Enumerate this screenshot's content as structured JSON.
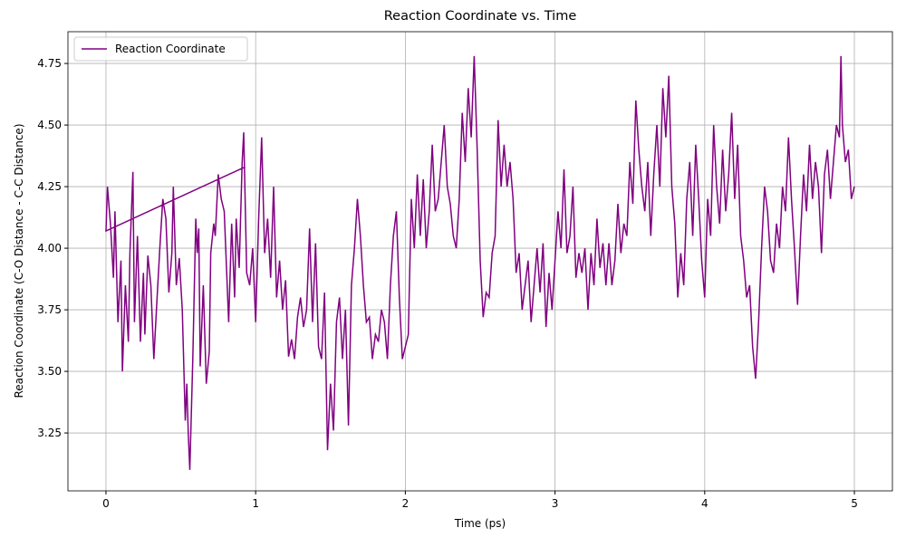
{
  "chart_data": {
    "type": "line",
    "title": "Reaction Coordinate vs. Time",
    "xlabel": "Time (ps)",
    "ylabel": "Reaction Coordinate (C-O Distance - C-C Distance)",
    "xlim": [
      -0.254,
      5.254
    ],
    "ylim": [
      3.015,
      4.879
    ],
    "xticks": [
      0,
      1,
      2,
      3,
      4,
      5
    ],
    "yticks": [
      3.25,
      {
        "value": 3.5,
        "label": "3.50"
      },
      3.75,
      {
        "value": 4,
        "label": "4.00"
      },
      4.25,
      {
        "value": 4.5,
        "label": "4.50"
      },
      4.75
    ],
    "grid": true,
    "legend": "upper left",
    "x": [
      0.93,
      0,
      0.01,
      0.03,
      0.05,
      0.06,
      0.08,
      0.1,
      0.11,
      0.13,
      0.15,
      0.16,
      0.18,
      0.19,
      0.21,
      0.23,
      0.25,
      0.26,
      0.28,
      0.3,
      0.32,
      0.34,
      0.36,
      0.38,
      0.4,
      0.42,
      0.44,
      0.45,
      0.47,
      0.49,
      0.51,
      0.53,
      0.54,
      0.55,
      0.56,
      0.58,
      0.6,
      0.61,
      0.62,
      0.63,
      0.65,
      0.67,
      0.69,
      0.7,
      0.72,
      0.73,
      0.75,
      0.77,
      0.79,
      0.82,
      0.84,
      0.86,
      0.87,
      0.89,
      0.91,
      0.92,
      0.94,
      0.96,
      0.98,
      1.0,
      1.02,
      1.04,
      1.06,
      1.08,
      1.1,
      1.12,
      1.14,
      1.16,
      1.18,
      1.2,
      1.22,
      1.24,
      1.26,
      1.28,
      1.3,
      1.32,
      1.34,
      1.36,
      1.38,
      1.4,
      1.42,
      1.44,
      1.46,
      1.48,
      1.5,
      1.52,
      1.54,
      1.56,
      1.58,
      1.6,
      1.62,
      1.64,
      1.66,
      1.68,
      1.7,
      1.72,
      1.74,
      1.76,
      1.78,
      1.8,
      1.82,
      1.84,
      1.86,
      1.88,
      1.9,
      1.92,
      1.94,
      1.96,
      1.98,
      2.0,
      2.02,
      2.04,
      2.06,
      2.08,
      2.1,
      2.12,
      2.14,
      2.16,
      2.18,
      2.2,
      2.22,
      2.24,
      2.26,
      2.28,
      2.3,
      2.32,
      2.34,
      2.36,
      2.38,
      2.4,
      2.42,
      2.44,
      2.46,
      2.48,
      2.5,
      2.52,
      2.54,
      2.56,
      2.58,
      2.6,
      2.62,
      2.64,
      2.66,
      2.68,
      2.7,
      2.72,
      2.74,
      2.76,
      2.78,
      2.8,
      2.82,
      2.84,
      2.86,
      2.88,
      2.9,
      2.92,
      2.94,
      2.96,
      2.98,
      3.0,
      3.02,
      3.04,
      3.06,
      3.08,
      3.1,
      3.12,
      3.14,
      3.16,
      3.18,
      3.2,
      3.22,
      3.24,
      3.26,
      3.28,
      3.3,
      3.32,
      3.34,
      3.36,
      3.38,
      3.4,
      3.42,
      3.44,
      3.46,
      3.48,
      3.5,
      3.52,
      3.54,
      3.56,
      3.58,
      3.6,
      3.62,
      3.64,
      3.66,
      3.68,
      3.7,
      3.72,
      3.74,
      3.76,
      3.78,
      3.8,
      3.82,
      3.84,
      3.86,
      3.88,
      3.9,
      3.92,
      3.94,
      3.96,
      3.98,
      4.0,
      4.02,
      4.04,
      4.06,
      4.08,
      4.1,
      4.12,
      4.14,
      4.16,
      4.18,
      4.2,
      4.22,
      4.24,
      4.26,
      4.28,
      4.3,
      4.32,
      4.34,
      4.36,
      4.38,
      4.4,
      4.42,
      4.44,
      4.46,
      4.48,
      4.5,
      4.52,
      4.54,
      4.56,
      4.58,
      4.6,
      4.62,
      4.64,
      4.66,
      4.68,
      4.7,
      4.72,
      4.74,
      4.76,
      4.78,
      4.8,
      4.82,
      4.84,
      4.86,
      4.88,
      4.9,
      4.91,
      4.92,
      4.94,
      4.96,
      4.98,
      5.0
    ],
    "series": [
      {
        "name": "Reaction Coordinate",
        "color": "#800080",
        "values": [
          4.33,
          4.07,
          4.25,
          4.1,
          3.88,
          4.15,
          3.7,
          3.95,
          3.5,
          3.85,
          3.62,
          3.98,
          4.31,
          3.7,
          4.05,
          3.62,
          3.9,
          3.65,
          3.97,
          3.85,
          3.55,
          3.78,
          4.0,
          4.2,
          4.12,
          3.82,
          3.98,
          4.25,
          3.85,
          3.96,
          3.75,
          3.3,
          3.45,
          3.25,
          3.1,
          3.55,
          4.12,
          3.98,
          4.08,
          3.52,
          3.85,
          3.45,
          3.58,
          3.98,
          4.1,
          4.05,
          4.3,
          4.2,
          4.15,
          3.7,
          4.1,
          3.8,
          4.12,
          3.92,
          4.35,
          4.47,
          3.9,
          3.85,
          4.0,
          3.7,
          4.12,
          4.45,
          3.98,
          4.12,
          3.88,
          4.25,
          3.8,
          3.95,
          3.75,
          3.87,
          3.56,
          3.63,
          3.55,
          3.72,
          3.8,
          3.68,
          3.75,
          4.08,
          3.7,
          4.02,
          3.6,
          3.55,
          3.82,
          3.18,
          3.45,
          3.26,
          3.7,
          3.8,
          3.55,
          3.75,
          3.28,
          3.85,
          4.0,
          4.2,
          4.05,
          3.85,
          3.7,
          3.72,
          3.55,
          3.65,
          3.62,
          3.75,
          3.7,
          3.55,
          3.85,
          4.05,
          4.15,
          3.8,
          3.55,
          3.6,
          3.65,
          4.2,
          4.0,
          4.3,
          4.05,
          4.28,
          4.0,
          4.15,
          4.42,
          4.15,
          4.2,
          4.35,
          4.5,
          4.25,
          4.18,
          4.05,
          4.0,
          4.2,
          4.55,
          4.35,
          4.65,
          4.45,
          4.78,
          4.4,
          3.95,
          3.72,
          3.82,
          3.8,
          3.98,
          4.05,
          4.52,
          4.25,
          4.42,
          4.25,
          4.35,
          4.2,
          3.9,
          3.98,
          3.75,
          3.85,
          3.95,
          3.7,
          3.85,
          4.0,
          3.82,
          4.02,
          3.68,
          3.9,
          3.75,
          3.95,
          4.15,
          4.0,
          4.32,
          3.98,
          4.05,
          4.25,
          3.88,
          3.98,
          3.9,
          4.0,
          3.75,
          3.98,
          3.85,
          4.12,
          3.92,
          4.02,
          3.85,
          4.02,
          3.85,
          3.95,
          4.18,
          3.98,
          4.1,
          4.05,
          4.35,
          4.18,
          4.6,
          4.4,
          4.25,
          4.15,
          4.35,
          4.05,
          4.3,
          4.5,
          4.25,
          4.65,
          4.45,
          4.7,
          4.25,
          4.1,
          3.8,
          3.98,
          3.85,
          4.2,
          4.35,
          4.05,
          4.42,
          4.2,
          3.95,
          3.8,
          4.2,
          4.05,
          4.5,
          4.25,
          4.1,
          4.4,
          4.15,
          4.3,
          4.55,
          4.2,
          4.42,
          4.05,
          3.95,
          3.8,
          3.85,
          3.6,
          3.47,
          3.7,
          4.0,
          4.25,
          4.15,
          3.95,
          3.9,
          4.1,
          4.0,
          4.25,
          4.15,
          4.45,
          4.2,
          4.0,
          3.77,
          4.05,
          4.3,
          4.15,
          4.42,
          4.2,
          4.35,
          4.25,
          3.98,
          4.3,
          4.4,
          4.2,
          4.35,
          4.5,
          4.45,
          4.78,
          4.5,
          4.35,
          4.4,
          4.2,
          4.25
        ]
      }
    ]
  }
}
